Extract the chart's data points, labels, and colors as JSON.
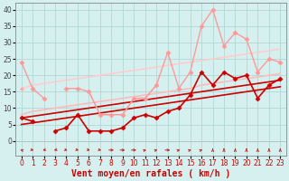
{
  "bg_color": "#d6f0f0",
  "grid_color": "#b0d8d8",
  "xlabel": "Vent moyen/en rafales ( km/h )",
  "x": [
    0,
    1,
    2,
    3,
    4,
    5,
    6,
    7,
    8,
    9,
    10,
    11,
    12,
    13,
    14,
    15,
    16,
    17,
    18,
    19,
    20,
    21,
    22,
    23
  ],
  "series": [
    {
      "y": [
        7,
        6,
        null,
        3,
        4,
        8,
        3,
        3,
        3,
        4,
        7,
        8,
        7,
        9,
        10,
        14,
        21,
        17,
        21,
        19,
        20,
        13,
        17,
        19
      ],
      "color": "#cc0000",
      "lw": 1.2,
      "marker": "D",
      "ms": 2.5,
      "zorder": 5
    },
    {
      "y": [
        5,
        5.5,
        6,
        6.5,
        7,
        7.5,
        8,
        8.5,
        9,
        9.5,
        10,
        10.5,
        11,
        11.5,
        12,
        12.5,
        13,
        13.5,
        14,
        14.5,
        15,
        15.5,
        16,
        16.5
      ],
      "color": "#cc0000",
      "lw": 1.2,
      "marker": null,
      "ms": 0,
      "zorder": 3,
      "linestyle": "-"
    },
    {
      "y": [
        7,
        7.5,
        8,
        8.5,
        9,
        9.5,
        10,
        10.5,
        11,
        11.5,
        12,
        12.5,
        13,
        13.5,
        14,
        14.5,
        15,
        15.5,
        16,
        16.5,
        17,
        17.5,
        18,
        18.5
      ],
      "color": "#cc0000",
      "lw": 1.2,
      "marker": null,
      "ms": 0,
      "zorder": 3,
      "linestyle": "-"
    },
    {
      "y": [
        24,
        16,
        13,
        null,
        16,
        16,
        15,
        8,
        8,
        8,
        13,
        13,
        17,
        27,
        16,
        21,
        35,
        40,
        29,
        33,
        31,
        21,
        25,
        24
      ],
      "color": "#ff9999",
      "lw": 1.0,
      "marker": "D",
      "ms": 2.5,
      "zorder": 4
    },
    {
      "y": [
        8,
        9,
        9.5,
        10,
        10.5,
        11,
        11.5,
        12,
        12.5,
        13,
        13.5,
        14,
        14.5,
        15,
        15.5,
        16,
        17,
        17.5,
        18,
        18.5,
        19,
        19.5,
        20,
        20.5
      ],
      "color": "#ffbbbb",
      "lw": 1.2,
      "marker": null,
      "ms": 0,
      "zorder": 2,
      "linestyle": "-"
    },
    {
      "y": [
        16,
        17,
        17.5,
        18,
        18.5,
        19,
        19.5,
        20,
        20.5,
        21,
        21.5,
        22,
        22.5,
        23,
        23.5,
        24,
        24.5,
        25,
        25.5,
        26,
        26.5,
        27,
        27.5,
        28
      ],
      "color": "#ffcccc",
      "lw": 1.2,
      "marker": null,
      "ms": 0,
      "zorder": 2,
      "linestyle": "-"
    },
    {
      "y": [
        16,
        null,
        13,
        null,
        null,
        null,
        15,
        8,
        8,
        8,
        13,
        13,
        17,
        null,
        16,
        null,
        null,
        null,
        null,
        null,
        null,
        null,
        null,
        null
      ],
      "color": "#ffaaaa",
      "lw": 0.9,
      "marker": "D",
      "ms": 2.0,
      "zorder": 3
    }
  ],
  "wind_angles": [
    225,
    45,
    315,
    315,
    45,
    45,
    45,
    45,
    90,
    90,
    90,
    135,
    135,
    90,
    135,
    135,
    135,
    180,
    180,
    180,
    180,
    180,
    180,
    180
  ],
  "ylim": [
    -4.5,
    42
  ],
  "xlim": [
    -0.5,
    23.5
  ],
  "yticks": [
    0,
    5,
    10,
    15,
    20,
    25,
    30,
    35,
    40
  ],
  "xticks": [
    0,
    1,
    2,
    3,
    4,
    5,
    6,
    7,
    8,
    9,
    10,
    11,
    12,
    13,
    14,
    15,
    16,
    17,
    18,
    19,
    20,
    21,
    22,
    23
  ],
  "tick_fontsize": 5.5,
  "label_fontsize": 7
}
